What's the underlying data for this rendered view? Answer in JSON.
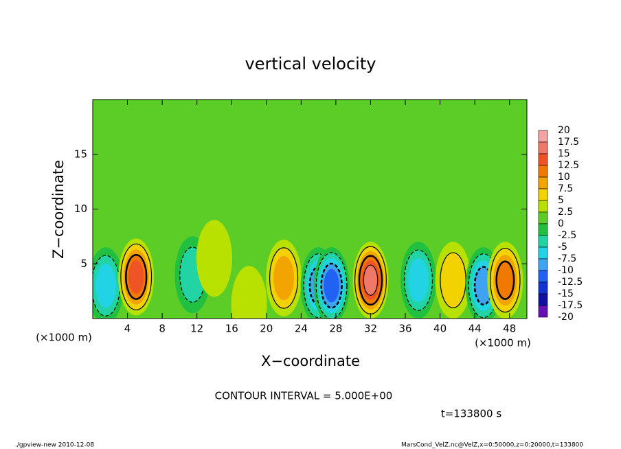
{
  "chart_data": {
    "type": "contour",
    "title": "vertical velocity",
    "x_label": "X−coordinate",
    "y_label": "Z−coordinate",
    "x_unit": "(×1000 m)",
    "xlim": [
      0,
      50
    ],
    "xticks": [
      4,
      8,
      12,
      16,
      20,
      24,
      28,
      32,
      36,
      40,
      44,
      48
    ],
    "ylim": [
      0,
      20
    ],
    "yticks": [
      5,
      10,
      15
    ],
    "levels": [
      20,
      17.5,
      15,
      12.5,
      10,
      7.5,
      5,
      2.5,
      0,
      -2.5,
      -5,
      -7.5,
      -10,
      -12.5,
      -15,
      -17.5,
      -20
    ],
    "colors": [
      "#f4a3a3",
      "#f07868",
      "#ef5424",
      "#f07a00",
      "#f2a400",
      "#f2d200",
      "#b8e000",
      "#5ccd26",
      "#22c040",
      "#22d3a4",
      "#22d3e6",
      "#3ea4f2",
      "#2262f2",
      "#1232d2",
      "#1010a0",
      "#6412b4"
    ],
    "extrema": [
      {
        "x": 1.5,
        "z": 3,
        "value": -6
      },
      {
        "x": 5,
        "z": 3.8,
        "value": 14
      },
      {
        "x": 11.5,
        "z": 4,
        "value": -5
      },
      {
        "x": 14,
        "z": 5.5,
        "value": 3
      },
      {
        "x": 18,
        "z": 1.3,
        "value": 4
      },
      {
        "x": 22,
        "z": 3.7,
        "value": 9
      },
      {
        "x": 26,
        "z": 3,
        "value": -10
      },
      {
        "x": 27.5,
        "z": 3,
        "value": -11
      },
      {
        "x": 32,
        "z": 3.5,
        "value": 15
      },
      {
        "x": 37.5,
        "z": 3.5,
        "value": -6
      },
      {
        "x": 41.5,
        "z": 3.5,
        "value": 6
      },
      {
        "x": 45,
        "z": 3,
        "value": -8
      },
      {
        "x": 47.5,
        "z": 3.5,
        "value": 11
      }
    ],
    "contour_note": "CONTOUR INTERVAL = 5.000E+00",
    "time_label": "t=133800 s",
    "footer_left": "./gpview-new   2010-12-08",
    "footer_right": "MarsCond_VelZ.nc@VelZ,x=0:50000,z=0:20000,t=133800"
  }
}
